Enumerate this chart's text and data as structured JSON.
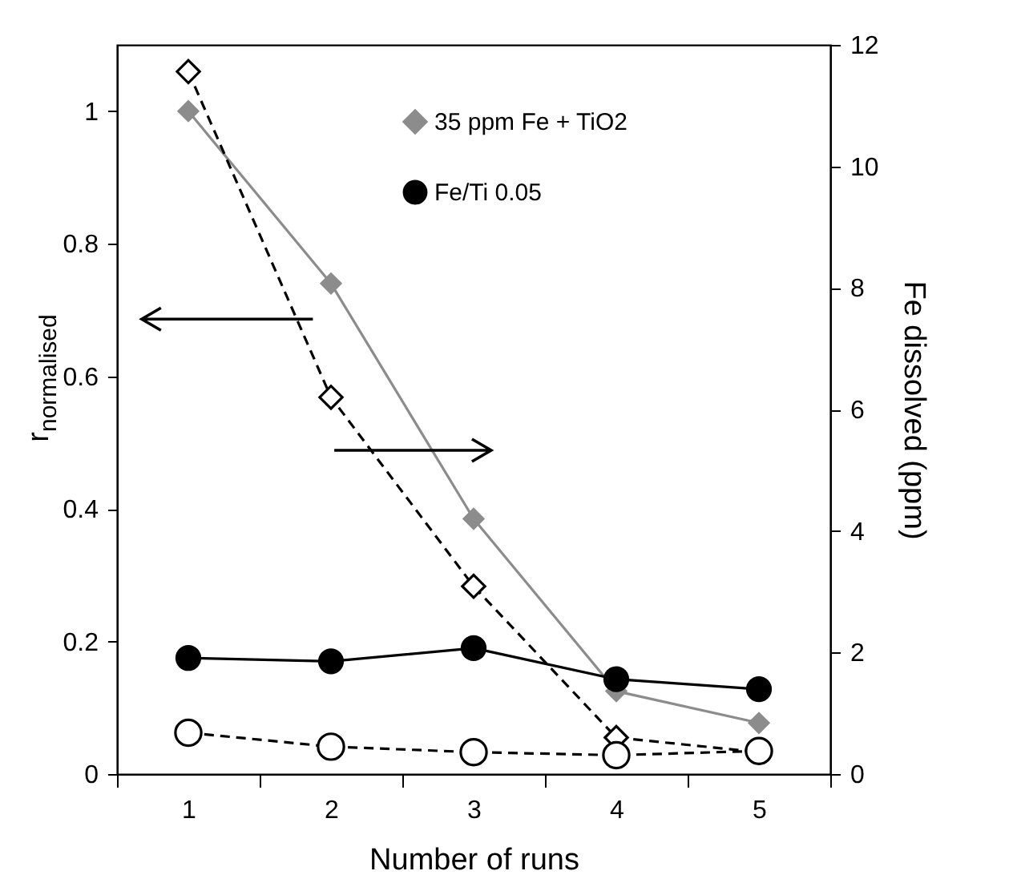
{
  "chart_data": {
    "type": "line",
    "xlabel": "Number of runs",
    "ylabel": "r$_{normalised}$",
    "y2label": "Fe dissolved (ppm)",
    "categories": [
      "1",
      "2",
      "3",
      "4",
      "5"
    ],
    "series": [
      {
        "name": "35 ppm Fe + TiO2",
        "color": "#8c8c8c",
        "marker": "diamond",
        "line_style": "solid",
        "values": [
          1.0,
          0.74,
          0.385,
          0.125,
          0.077
        ]
      },
      {
        "name": "Fe/Ti 0.05",
        "color": "#000000",
        "marker": "circle",
        "line_style": "solid",
        "values": [
          0.175,
          0.17,
          0.19,
          0.143,
          0.128
        ]
      },
      {
        "color": "#000000",
        "marker": "diamond",
        "line_style": "dashed",
        "axis": "y2",
        "values": [
          11.56,
          6.2,
          3.09,
          0.6,
          0.36
        ]
      },
      {
        "color": "#000000",
        "marker": "circle",
        "line_style": "dashed",
        "axis": "y2",
        "values": [
          0.68,
          0.45,
          0.36,
          0.31,
          0.38
        ]
      }
    ],
    "ylim": [
      0,
      1.1
    ],
    "yticks": [
      0,
      0.2,
      0.4,
      0.6,
      0.8,
      1
    ],
    "y2lim": [
      0,
      12
    ],
    "y2ticks": [
      0,
      2,
      4,
      6,
      8,
      10,
      12
    ],
    "legend": "top right",
    "grid": false
  }
}
